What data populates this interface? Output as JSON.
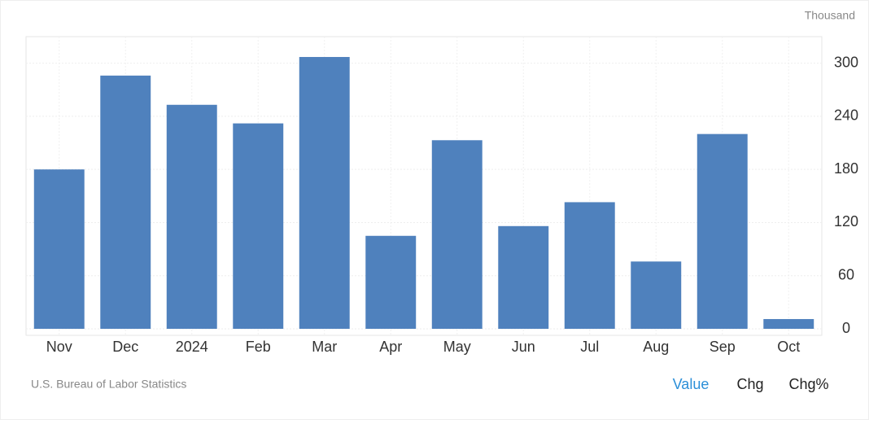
{
  "chart_data": {
    "type": "bar",
    "unit": "Thousand",
    "categories": [
      "Nov",
      "Dec",
      "2024",
      "Feb",
      "Mar",
      "Apr",
      "May",
      "Jun",
      "Jul",
      "Aug",
      "Sep",
      "Oct"
    ],
    "values": [
      180,
      286,
      253,
      232,
      307,
      105,
      213,
      116,
      143,
      76,
      220,
      11
    ],
    "color": "#4f81bd",
    "ylim": [
      0,
      330
    ],
    "yticks": [
      0,
      60,
      120,
      180,
      240,
      300
    ],
    "grid": true,
    "source": "U.S. Bureau of Labor Statistics"
  },
  "controls": [
    "Value",
    "Chg",
    "Chg%"
  ]
}
